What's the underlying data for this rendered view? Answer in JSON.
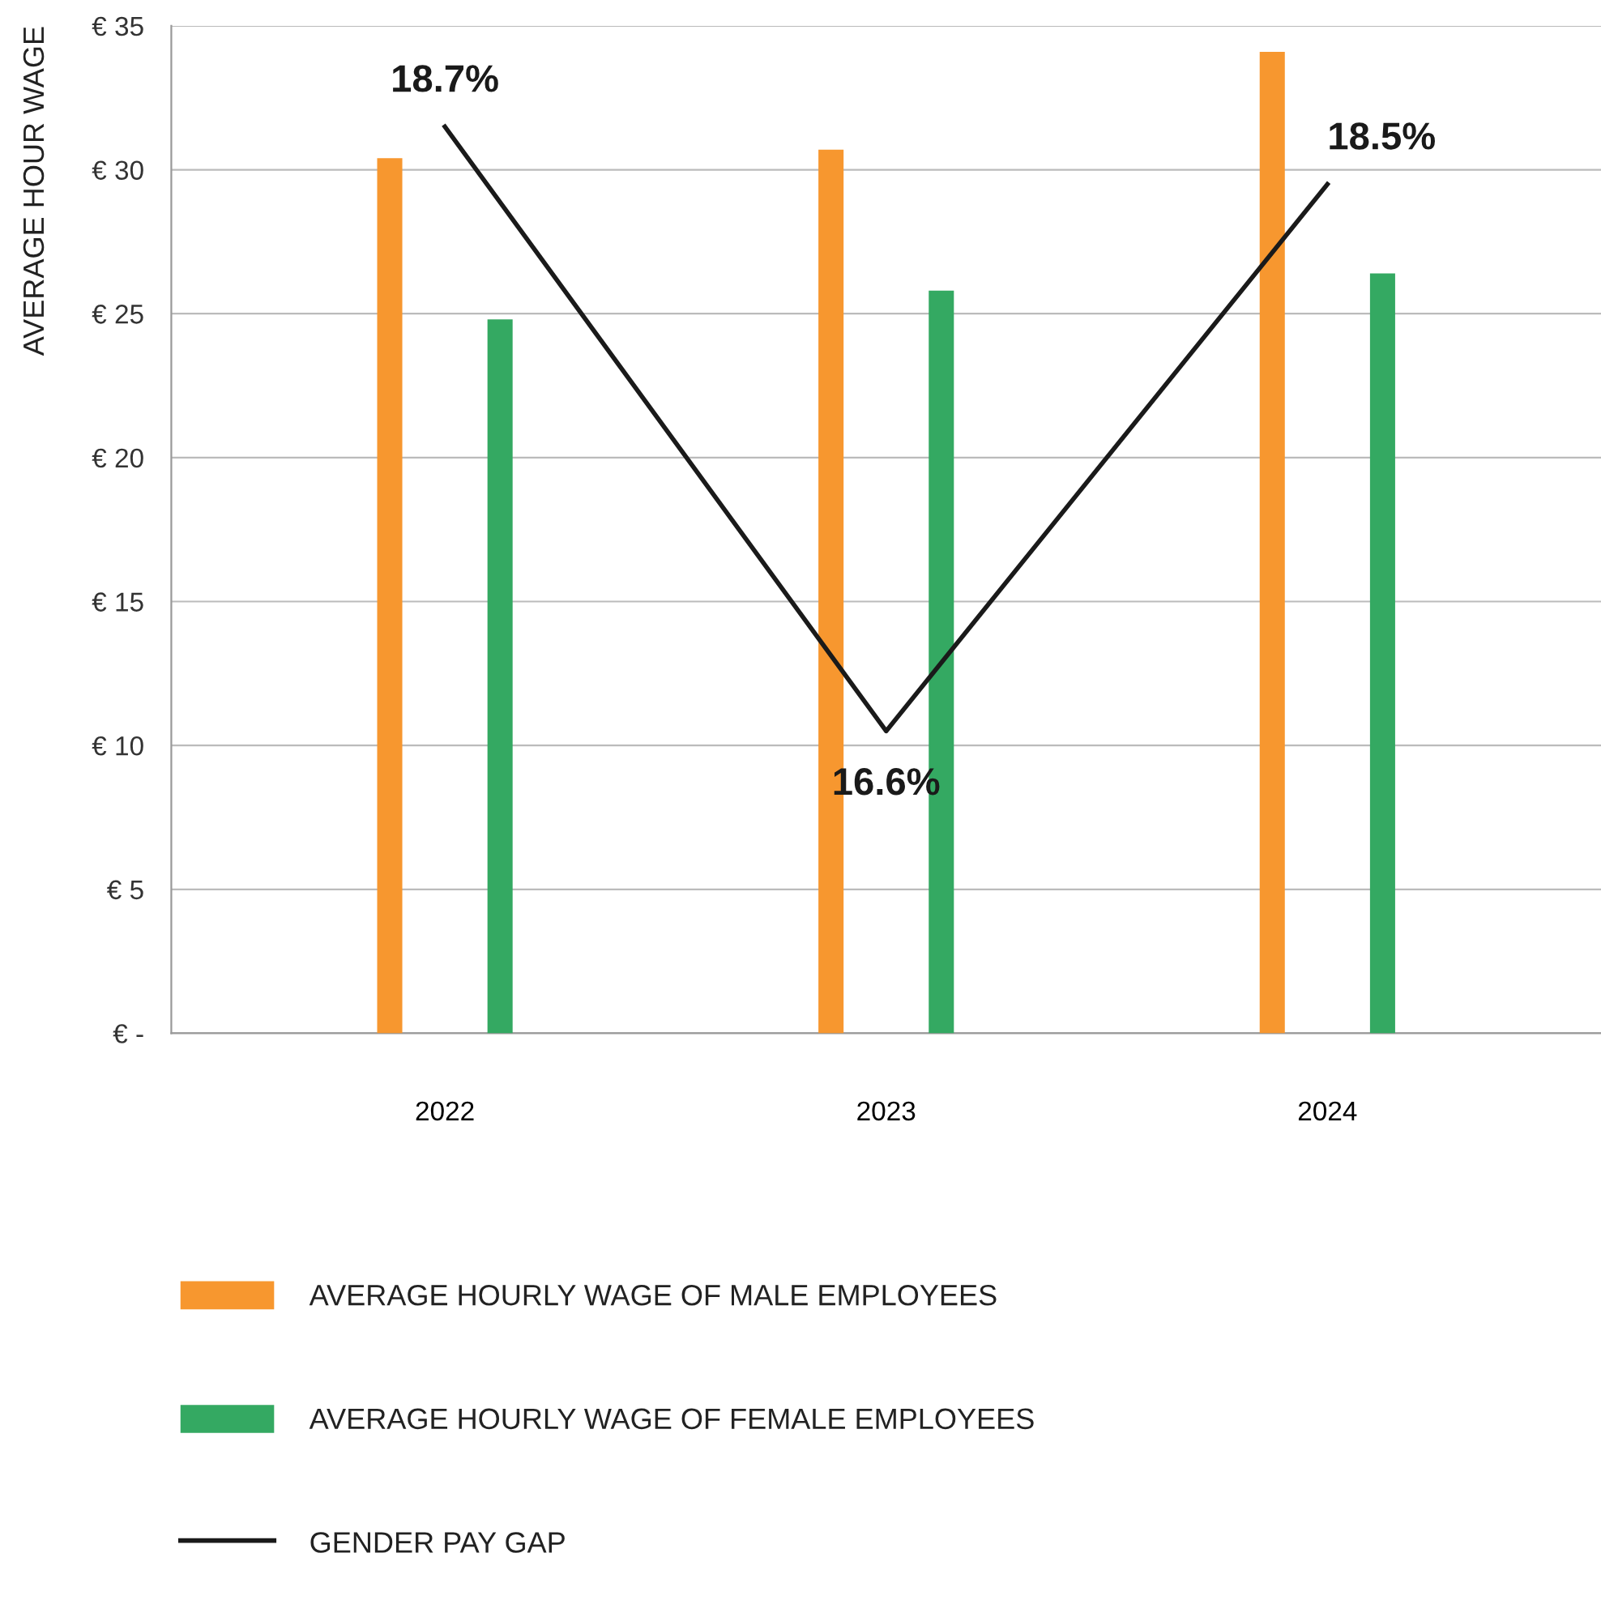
{
  "chart_data": {
    "type": "bar",
    "ylabel": "AVERAGE HOUR WAGE",
    "categories": [
      "2022",
      "2023",
      "2024"
    ],
    "series": [
      {
        "name": "AVERAGE HOURLY WAGE OF MALE EMPLOYEES",
        "color": "#f7972f",
        "values": [
          30.4,
          30.7,
          34.1
        ]
      },
      {
        "name": "AVERAGE HOURLY WAGE OF FEMALE EMPLOYEES",
        "color": "#34a962",
        "values": [
          24.8,
          25.8,
          26.4
        ]
      },
      {
        "name": "GENDER PAY GAP",
        "type": "line",
        "axis": "y2",
        "color": "#1a1a1a",
        "values": [
          18.7,
          16.6,
          18.5
        ],
        "value_labels": [
          "18.7%",
          "16.6%",
          "18.5%"
        ]
      }
    ],
    "ylim": [
      0,
      35
    ],
    "yticks": [
      {
        "value": 0,
        "label": "€ -"
      },
      {
        "value": 5,
        "label": "€ 5"
      },
      {
        "value": 10,
        "label": "€ 10"
      },
      {
        "value": 15,
        "label": "€ 15"
      },
      {
        "value": 20,
        "label": "€ 20"
      },
      {
        "value": 25,
        "label": "€ 25"
      },
      {
        "value": 30,
        "label": "€ 30"
      },
      {
        "value": 35,
        "label": "€ 35"
      }
    ],
    "y2lim": [
      15.55,
      19.05
    ],
    "grid": "y",
    "legend": "bottom",
    "line_style": "solid",
    "marker": "none"
  }
}
